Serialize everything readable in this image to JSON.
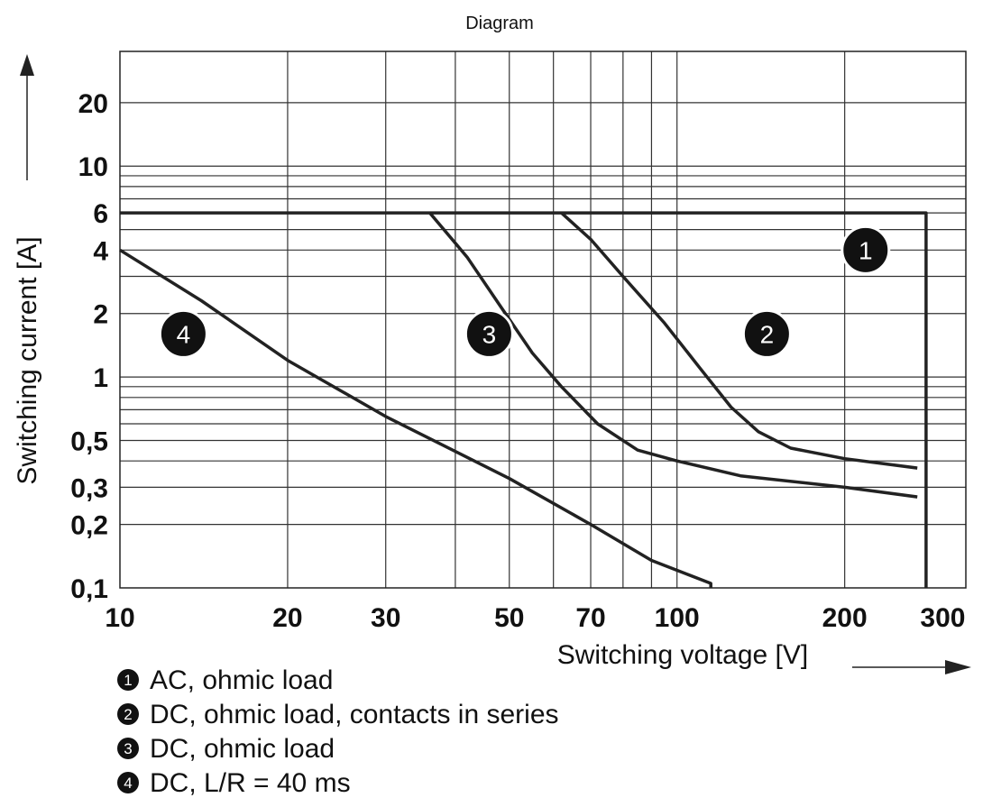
{
  "chart_data": {
    "type": "line",
    "title": "Diagram",
    "xlabel": "Switching voltage [V]",
    "ylabel": "Switching current [A]",
    "x_scale": "log",
    "y_scale": "log",
    "xlim": [
      10,
      330
    ],
    "ylim": [
      0.1,
      35
    ],
    "grid": true,
    "x_ticks": [
      {
        "value": 10,
        "label": "10"
      },
      {
        "value": 20,
        "label": "20"
      },
      {
        "value": 30,
        "label": "30"
      },
      {
        "value": 50,
        "label": "50"
      },
      {
        "value": 70,
        "label": "70"
      },
      {
        "value": 100,
        "label": "100"
      },
      {
        "value": 200,
        "label": "200"
      },
      {
        "value": 300,
        "label": "300"
      }
    ],
    "y_ticks": [
      {
        "value": 0.1,
        "label": "0,1"
      },
      {
        "value": 0.2,
        "label": "0,2"
      },
      {
        "value": 0.3,
        "label": "0,3"
      },
      {
        "value": 0.5,
        "label": "0,5"
      },
      {
        "value": 1,
        "label": "1"
      },
      {
        "value": 2,
        "label": "2"
      },
      {
        "value": 4,
        "label": "4"
      },
      {
        "value": 6,
        "label": "6"
      },
      {
        "value": 10,
        "label": "10"
      },
      {
        "value": 20,
        "label": "20"
      }
    ],
    "x_gridlines": [
      20,
      30,
      40,
      50,
      60,
      70,
      80,
      90,
      100,
      200
    ],
    "y_gridlines": [
      0.2,
      0.3,
      0.4,
      0.5,
      0.6,
      0.7,
      0.8,
      0.9,
      1,
      2,
      3,
      4,
      5,
      6,
      7,
      8,
      9,
      10,
      20
    ],
    "series": [
      {
        "id": "1",
        "legend": "AC, ohmic load",
        "marker_pos": [
          218,
          4
        ],
        "points": [
          [
            10,
            6
          ],
          [
            280,
            6
          ],
          [
            280,
            0.1
          ]
        ]
      },
      {
        "id": "2",
        "legend": "DC, ohmic load, contacts in series",
        "marker_pos": [
          145,
          1.6
        ],
        "points": [
          [
            62,
            6
          ],
          [
            70,
            4.5
          ],
          [
            80,
            3
          ],
          [
            95,
            1.8
          ],
          [
            110,
            1.1
          ],
          [
            125,
            0.72
          ],
          [
            140,
            0.55
          ],
          [
            160,
            0.46
          ],
          [
            200,
            0.41
          ],
          [
            270,
            0.37
          ]
        ]
      },
      {
        "id": "3",
        "legend": "DC, ohmic load",
        "marker_pos": [
          46,
          1.6
        ],
        "points": [
          [
            36,
            6
          ],
          [
            42,
            3.7
          ],
          [
            48,
            2.2
          ],
          [
            55,
            1.3
          ],
          [
            62,
            0.9
          ],
          [
            72,
            0.6
          ],
          [
            85,
            0.45
          ],
          [
            100,
            0.4
          ],
          [
            130,
            0.34
          ],
          [
            200,
            0.3
          ],
          [
            270,
            0.27
          ]
        ]
      },
      {
        "id": "4",
        "legend": "DC, L/R = 40 ms",
        "marker_pos": [
          13,
          1.6
        ],
        "points": [
          [
            10,
            4
          ],
          [
            14,
            2.3
          ],
          [
            20,
            1.2
          ],
          [
            30,
            0.65
          ],
          [
            50,
            0.33
          ],
          [
            70,
            0.2
          ],
          [
            90,
            0.135
          ],
          [
            115,
            0.105
          ],
          [
            115,
            0.1
          ]
        ]
      }
    ]
  }
}
